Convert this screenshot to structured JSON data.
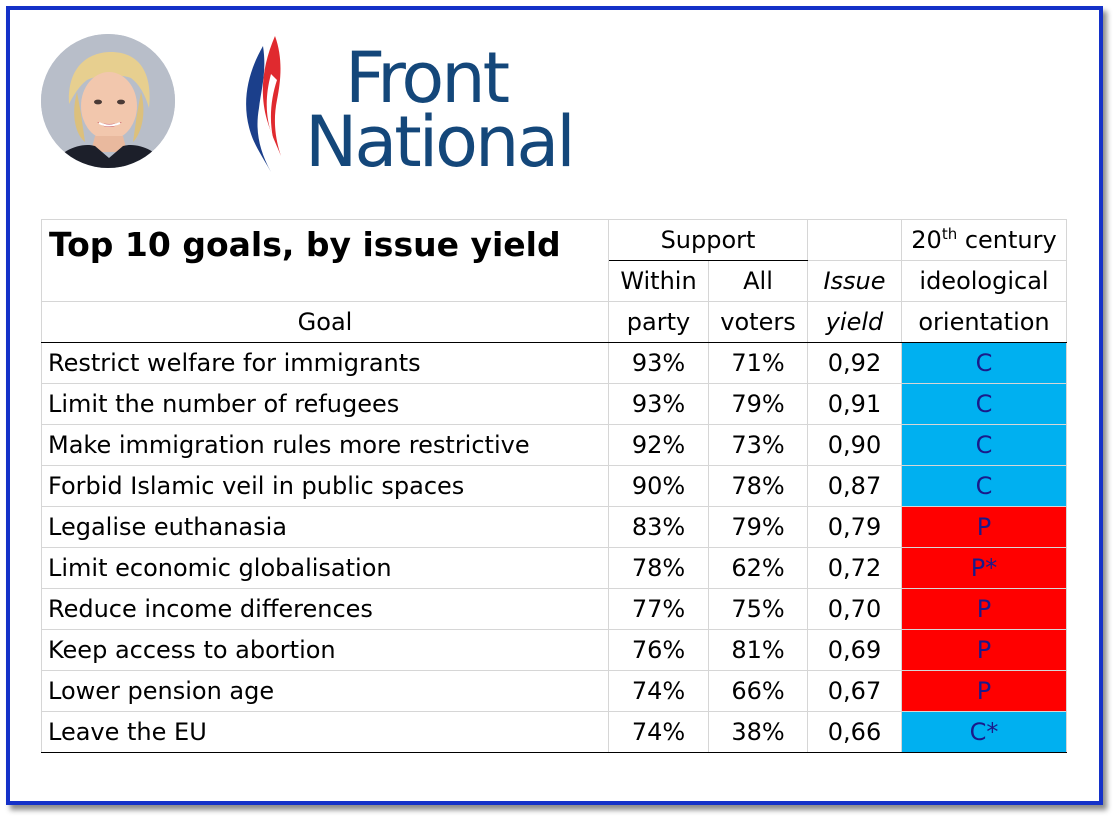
{
  "logo": {
    "line1": "Front",
    "line2": "National"
  },
  "table": {
    "title": "Top 10 goals, by issue yield",
    "headers": {
      "support": "Support",
      "within": "Within",
      "party": "party",
      "all": "All",
      "voters": "voters",
      "issue": "Issue",
      "yield": "yield",
      "century_num": "20",
      "century_sup": "th",
      "century_rest": " century",
      "ideological": "ideological",
      "orientation": "orientation",
      "goal": "Goal"
    },
    "rows": [
      {
        "goal": "Restrict welfare for immigrants",
        "within": "93%",
        "all": "71%",
        "yield": "0,92",
        "orientation": "C"
      },
      {
        "goal": "Limit the number of refugees",
        "within": "93%",
        "all": "79%",
        "yield": "0,91",
        "orientation": "C"
      },
      {
        "goal": "Make immigration rules more restrictive",
        "within": "92%",
        "all": "73%",
        "yield": "0,90",
        "orientation": "C"
      },
      {
        "goal": "Forbid Islamic veil in public spaces",
        "within": "90%",
        "all": "78%",
        "yield": "0,87",
        "orientation": "C"
      },
      {
        "goal": "Legalise euthanasia",
        "within": "83%",
        "all": "79%",
        "yield": "0,79",
        "orientation": "P"
      },
      {
        "goal": "Limit economic globalisation",
        "within": "78%",
        "all": "62%",
        "yield": "0,72",
        "orientation": "P*"
      },
      {
        "goal": "Reduce income differences",
        "within": "77%",
        "all": "75%",
        "yield": "0,70",
        "orientation": "P"
      },
      {
        "goal": "Keep access to abortion",
        "within": "76%",
        "all": "81%",
        "yield": "0,69",
        "orientation": "P"
      },
      {
        "goal": "Lower pension age",
        "within": "74%",
        "all": "66%",
        "yield": "0,67",
        "orientation": "P"
      },
      {
        "goal": "Leave the EU",
        "within": "74%",
        "all": "38%",
        "yield": "0,66",
        "orientation": "C*"
      }
    ]
  },
  "colors": {
    "frame": "#1431c8",
    "logo_text": "#14477a",
    "conservative_fill": "#00b0f0",
    "progressive_fill": "#ff0000"
  }
}
